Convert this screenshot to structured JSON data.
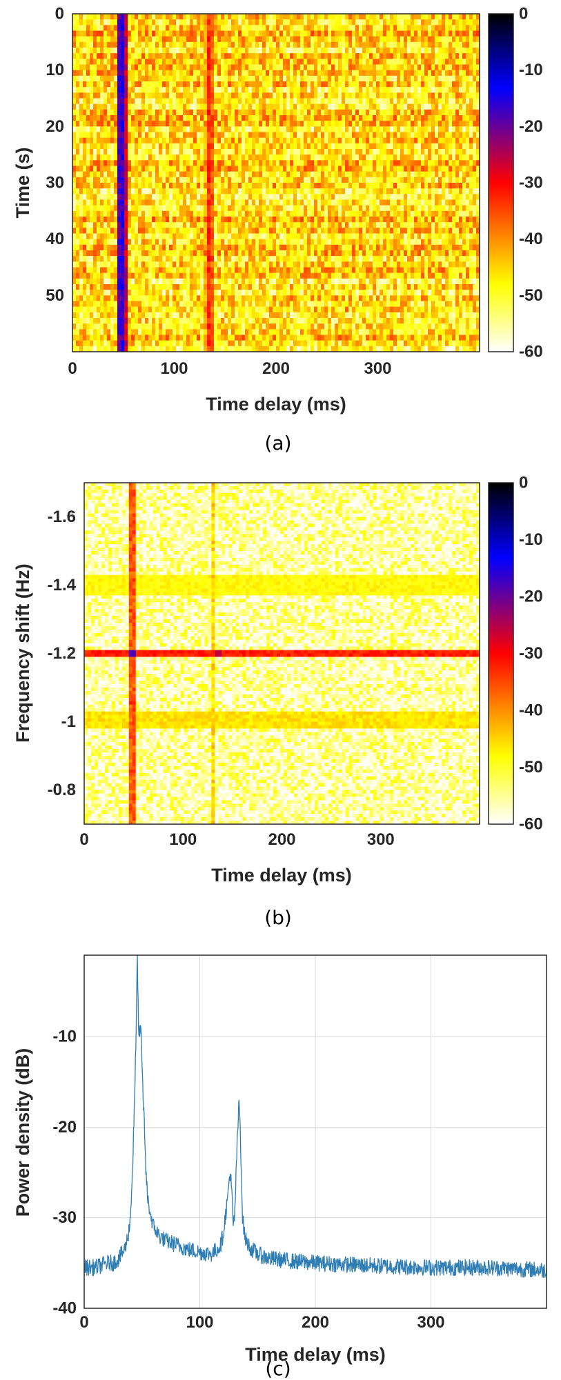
{
  "colors": {
    "colormap": [
      "#000000",
      "#0000ff",
      "#ff0000",
      "#ffff00",
      "#ffffff"
    ],
    "line": "#2e7db5",
    "grid": "#d8d8d8",
    "text": "#262626"
  },
  "chart_data": [
    {
      "type": "heatmap",
      "caption": "(a)",
      "xlabel": "Time delay (ms)",
      "ylabel": "Time (s)",
      "xlim": [
        0,
        400
      ],
      "ylim": [
        0,
        60
      ],
      "y_reversed": true,
      "xticks": [
        0,
        100,
        200,
        300
      ],
      "yticks": [
        0,
        10,
        20,
        30,
        40,
        50
      ],
      "colorbar": {
        "min": -60,
        "max": 0,
        "ticks": [
          0,
          -10,
          -20,
          -30,
          -40,
          -50,
          -60
        ]
      },
      "features": [
        {
          "kind": "vertical_ridge",
          "delay_ms": 48,
          "level_db": -15
        },
        {
          "kind": "vertical_ridge",
          "delay_ms": 135,
          "level_db": -32
        }
      ],
      "background_db": [
        -55,
        -38
      ]
    },
    {
      "type": "heatmap",
      "caption": "(b)",
      "xlabel": "Time delay (ms)",
      "ylabel": "Frequency shift (Hz)",
      "xlim": [
        0,
        400
      ],
      "ylim": [
        -1.7,
        -0.7
      ],
      "y_reversed": true,
      "xticks": [
        0,
        100,
        200,
        300
      ],
      "yticks": [
        -1.6,
        -1.4,
        -1.2,
        -1,
        -0.8
      ],
      "ytick_labels": [
        "-1.6",
        "-1.4",
        "-1.2",
        "-1",
        "-0.8"
      ],
      "colorbar": {
        "min": -60,
        "max": 0,
        "ticks": [
          0,
          -10,
          -20,
          -30,
          -40,
          -50,
          -60
        ]
      },
      "features": [
        {
          "kind": "horizontal_ridge",
          "freq_hz": -1.2,
          "level_db": -32
        },
        {
          "kind": "vertical_ridge",
          "delay_ms": 48,
          "level_db": -36
        },
        {
          "kind": "vertical_ridge",
          "delay_ms": 130,
          "level_db": -46
        },
        {
          "kind": "horizontal_band",
          "freq_hz": -1.4,
          "level_db": -50
        },
        {
          "kind": "horizontal_band",
          "freq_hz": -1.0,
          "level_db": -48
        },
        {
          "kind": "peak",
          "delay_ms": 48,
          "freq_hz": -1.2,
          "level_db": -18
        },
        {
          "kind": "peak",
          "delay_ms": 135,
          "freq_hz": -1.2,
          "level_db": -26
        }
      ],
      "background_db": [
        -60,
        -48
      ]
    },
    {
      "type": "line",
      "caption": "(c)",
      "xlabel": "Time delay (ms)",
      "ylabel": "Power density (dB)",
      "xlim": [
        0,
        400
      ],
      "ylim": [
        -40,
        -1
      ],
      "xticks": [
        0,
        100,
        200,
        300
      ],
      "yticks": [
        -40,
        -30,
        -20,
        -10
      ],
      "grid": true,
      "series": [
        {
          "name": "power density",
          "x": [
            0,
            10,
            20,
            25,
            30,
            35,
            38,
            40,
            42,
            44,
            45,
            46,
            47,
            48,
            49,
            50,
            51,
            52,
            53,
            55,
            58,
            60,
            65,
            70,
            80,
            90,
            100,
            110,
            115,
            118,
            120,
            122,
            124,
            126,
            127,
            128,
            129,
            130,
            131,
            132,
            133,
            134,
            135,
            136,
            137,
            138,
            139,
            140,
            142,
            145,
            150,
            160,
            180,
            200,
            250,
            300,
            350,
            400
          ],
          "y": [
            -35.5,
            -35.5,
            -35,
            -35,
            -34.5,
            -33.5,
            -32,
            -30,
            -24,
            -15,
            -9,
            -1,
            -9,
            -10,
            -9,
            -13,
            -17,
            -19,
            -24,
            -28,
            -30,
            -31,
            -32,
            -32.5,
            -33,
            -33.5,
            -33.8,
            -34,
            -33.5,
            -33,
            -32,
            -30,
            -28,
            -25,
            -26,
            -28,
            -31,
            -30,
            -27,
            -23,
            -20,
            -17,
            -20,
            -25,
            -30,
            -31,
            -32,
            -32.5,
            -33,
            -33.5,
            -34,
            -34.5,
            -34.8,
            -35,
            -35.3,
            -35.5,
            -35.5,
            -35.8
          ]
        }
      ],
      "noise_amplitude_db": 0.9
    }
  ]
}
